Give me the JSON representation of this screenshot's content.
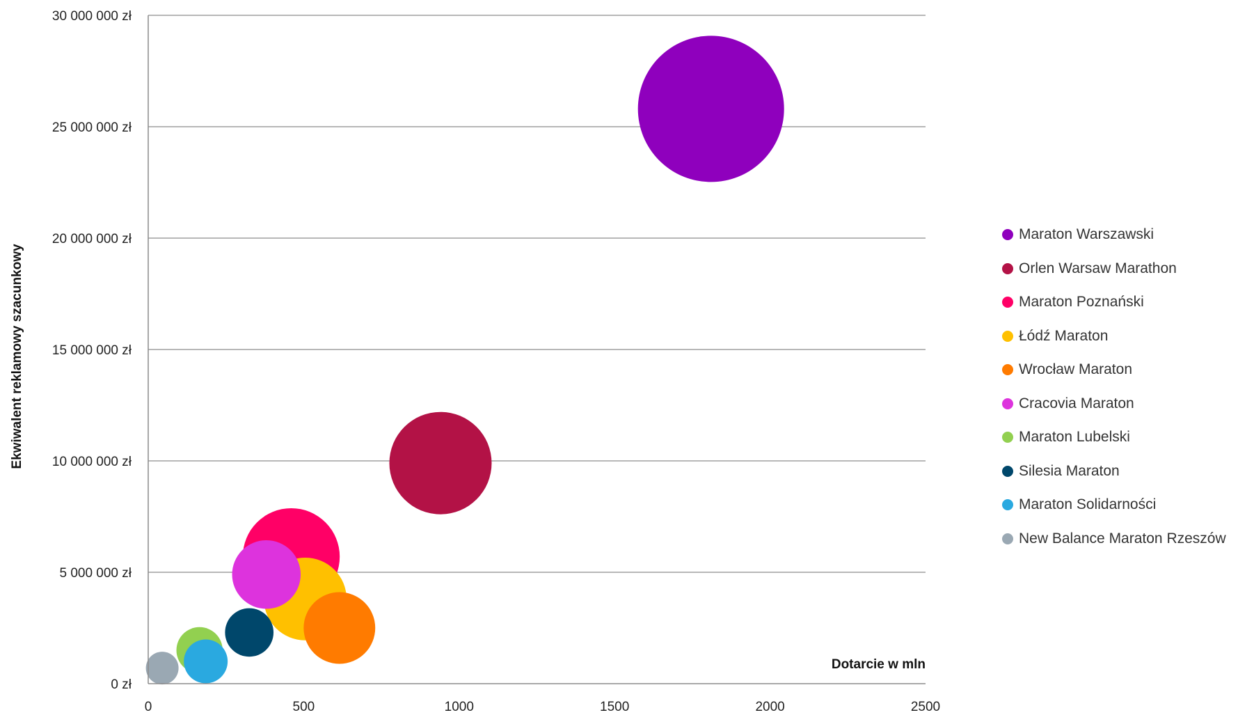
{
  "chart_data": {
    "type": "scatter",
    "subtype": "bubble",
    "title": "",
    "xlabel": "Dotarcie w mln",
    "ylabel": "Ekwiwalent reklamowy szacunkowy",
    "xlim": [
      0,
      2500
    ],
    "ylim": [
      0,
      30000000
    ],
    "x_ticks": [
      "0",
      "500",
      "1000",
      "1500",
      "2000",
      "2500"
    ],
    "y_ticks": [
      "0 zł",
      "5 000 000 zł",
      "10 000 000 zł",
      "15 000 000 zł",
      "20 000 000 zł",
      "25 000 000 zł",
      "30 000 000 zł"
    ],
    "grid": "horizontal",
    "legend_position": "right",
    "series": [
      {
        "name": "Maraton Warszawski",
        "x": 1810,
        "y": 25800000,
        "size": 100,
        "color": "#8f00bd"
      },
      {
        "name": "Orlen Warsaw Marathon",
        "x": 940,
        "y": 9900000,
        "size": 49,
        "color": "#b31246"
      },
      {
        "name": "Maraton Poznański",
        "x": 460,
        "y": 5700000,
        "size": 44,
        "color": "#ff0066"
      },
      {
        "name": "Łódź Maraton",
        "x": 505,
        "y": 3800000,
        "size": 32,
        "color": "#ffc000"
      },
      {
        "name": "Wrocław Maraton",
        "x": 615,
        "y": 2500000,
        "size": 24,
        "color": "#ff7b00"
      },
      {
        "name": "Cracovia Maraton",
        "x": 380,
        "y": 4900000,
        "size": 22,
        "color": "#dd33dd"
      },
      {
        "name": "Maraton Lubelski",
        "x": 165,
        "y": 1500000,
        "size": 10,
        "color": "#92d050"
      },
      {
        "name": "Silesia Maraton",
        "x": 325,
        "y": 2300000,
        "size": 11,
        "color": "#00476b"
      },
      {
        "name": "Maraton Solidarności",
        "x": 185,
        "y": 1000000,
        "size": 9,
        "color": "#2aa9e0"
      },
      {
        "name": "New Balance Maraton Rzeszów",
        "x": 45,
        "y": 700000,
        "size": 5,
        "color": "#9aa8b3"
      }
    ]
  }
}
